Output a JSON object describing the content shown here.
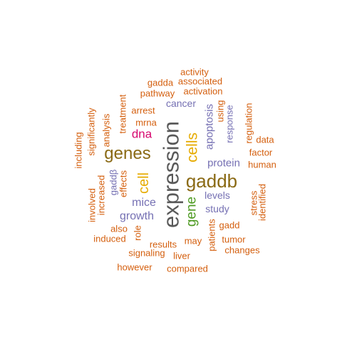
{
  "word_cloud": {
    "colors": {
      "orange": "#d45f0e",
      "purple": "#7570b3",
      "brown": "#8a6a15",
      "gray": "#595959",
      "gold": "#e6ab02",
      "green": "#4d9a21",
      "magenta": "#d6086f"
    },
    "words": [
      {
        "text": "expression",
        "color": "gray",
        "vertical": true
      },
      {
        "text": "gaddb",
        "color": "brown",
        "vertical": false
      },
      {
        "text": "genes",
        "color": "brown",
        "vertical": false
      },
      {
        "text": "cells",
        "color": "gold",
        "vertical": true
      },
      {
        "text": "cell",
        "color": "gold",
        "vertical": true
      },
      {
        "text": "gene",
        "color": "green",
        "vertical": true
      },
      {
        "text": "dna",
        "color": "magenta",
        "vertical": false
      },
      {
        "text": "growth",
        "color": "purple",
        "vertical": false
      },
      {
        "text": "mice",
        "color": "purple",
        "vertical": false
      },
      {
        "text": "protein",
        "color": "purple",
        "vertical": false
      },
      {
        "text": "apoptosis",
        "color": "purple",
        "vertical": true
      },
      {
        "text": "levels",
        "color": "purple",
        "vertical": false
      },
      {
        "text": "study",
        "color": "purple",
        "vertical": false
      },
      {
        "text": "cancer",
        "color": "purple",
        "vertical": false
      },
      {
        "text": "response",
        "color": "purple",
        "vertical": true
      },
      {
        "text": "gaddβ",
        "color": "purple",
        "vertical": true
      },
      {
        "text": "arrest",
        "color": "orange",
        "vertical": false
      },
      {
        "text": "mrna",
        "color": "orange",
        "vertical": false
      },
      {
        "text": "analysis",
        "color": "orange",
        "vertical": true
      },
      {
        "text": "treatment",
        "color": "orange",
        "vertical": true
      },
      {
        "text": "significantly",
        "color": "orange",
        "vertical": true
      },
      {
        "text": "including",
        "color": "orange",
        "vertical": true
      },
      {
        "text": "increased",
        "color": "orange",
        "vertical": true
      },
      {
        "text": "involved",
        "color": "orange",
        "vertical": true
      },
      {
        "text": "effects",
        "color": "orange",
        "vertical": true
      },
      {
        "text": "also",
        "color": "orange",
        "vertical": false
      },
      {
        "text": "induced",
        "color": "orange",
        "vertical": false
      },
      {
        "text": "role",
        "color": "orange",
        "vertical": true
      },
      {
        "text": "results",
        "color": "orange",
        "vertical": false
      },
      {
        "text": "signaling",
        "color": "orange",
        "vertical": false
      },
      {
        "text": "however",
        "color": "orange",
        "vertical": false
      },
      {
        "text": "compared",
        "color": "orange",
        "vertical": false
      },
      {
        "text": "liver",
        "color": "orange",
        "vertical": false
      },
      {
        "text": "may",
        "color": "orange",
        "vertical": false
      },
      {
        "text": "patients",
        "color": "orange",
        "vertical": true
      },
      {
        "text": "gadd",
        "color": "orange",
        "vertical": false
      },
      {
        "text": "tumor",
        "color": "orange",
        "vertical": false
      },
      {
        "text": "changes",
        "color": "orange",
        "vertical": false
      },
      {
        "text": "stress",
        "color": "orange",
        "vertical": true
      },
      {
        "text": "identified",
        "color": "orange",
        "vertical": true
      },
      {
        "text": "human",
        "color": "orange",
        "vertical": false
      },
      {
        "text": "factor",
        "color": "orange",
        "vertical": false
      },
      {
        "text": "data",
        "color": "orange",
        "vertical": false
      },
      {
        "text": "regulation",
        "color": "orange",
        "vertical": true
      },
      {
        "text": "using",
        "color": "orange",
        "vertical": true
      },
      {
        "text": "activation",
        "color": "orange",
        "vertical": false
      },
      {
        "text": "associated",
        "color": "orange",
        "vertical": false
      },
      {
        "text": "activity",
        "color": "orange",
        "vertical": false
      },
      {
        "text": "gadda",
        "color": "orange",
        "vertical": false
      },
      {
        "text": "pathway",
        "color": "orange",
        "vertical": false
      }
    ]
  }
}
